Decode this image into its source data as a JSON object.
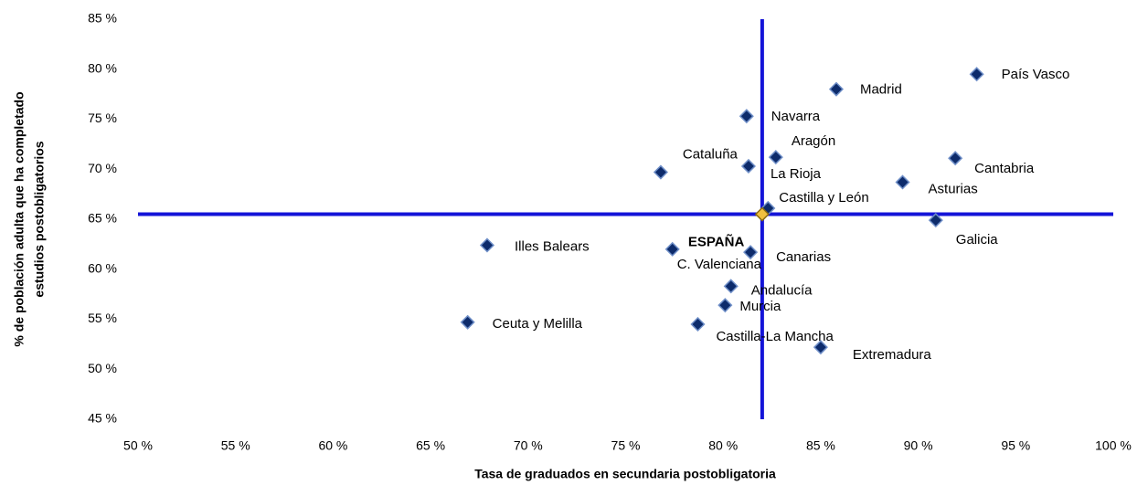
{
  "chart_data": {
    "type": "scatter",
    "xlabel": "Tasa de graduados en secundaria postobligatoria",
    "ylabel": [
      "% de población adulta que ha completado",
      "estudios postobligatorios"
    ],
    "xlim": [
      50,
      100
    ],
    "ylim": [
      45,
      85
    ],
    "xticks": [
      {
        "value": 50,
        "label": "50 %"
      },
      {
        "value": 55,
        "label": "55 %"
      },
      {
        "value": 60,
        "label": "60 %"
      },
      {
        "value": 65,
        "label": "65 %"
      },
      {
        "value": 70,
        "label": "70 %"
      },
      {
        "value": 75,
        "label": "75 %"
      },
      {
        "value": 80,
        "label": "80 %"
      },
      {
        "value": 85,
        "label": "85 %"
      },
      {
        "value": 90,
        "label": "90 %"
      },
      {
        "value": 95,
        "label": "95 %"
      },
      {
        "value": 100,
        "label": "100 %"
      }
    ],
    "yticks": [
      {
        "value": 45,
        "label": "45 %"
      },
      {
        "value": 50,
        "label": "50 %"
      },
      {
        "value": 55,
        "label": "55 %"
      },
      {
        "value": 60,
        "label": "60 %"
      },
      {
        "value": 65,
        "label": "65 %"
      },
      {
        "value": 70,
        "label": "70 %"
      },
      {
        "value": 75,
        "label": "75 %"
      },
      {
        "value": 80,
        "label": "80 %"
      },
      {
        "value": 85,
        "label": "85 %"
      }
    ],
    "reference_color": "#1414d8",
    "series": [
      {
        "color": "#0d2b6b",
        "labels": [
          "País Vasco",
          "Madrid",
          "Navarra",
          "Aragón",
          "Cataluña",
          "La Rioja",
          "Cantabria",
          "Asturias",
          "Castilla y León",
          "Galicia",
          "Illes Balears",
          "C. Valenciana",
          "Canarias",
          "Andalucía",
          "Murcia",
          "Ceuta y Melilla",
          "Castilla-La Mancha",
          "Extremadura"
        ],
        "x": [
          93.0,
          85.8,
          81.2,
          82.7,
          76.8,
          81.3,
          91.9,
          89.2,
          82.3,
          90.9,
          67.9,
          77.4,
          81.4,
          80.4,
          80.1,
          66.9,
          78.7,
          85.0
        ],
        "values": [
          79.5,
          78.0,
          75.3,
          71.2,
          69.7,
          70.3,
          71.1,
          68.7,
          66.1,
          64.9,
          62.4,
          62.0,
          61.7,
          58.3,
          56.4,
          54.7,
          54.5,
          52.2
        ]
      },
      {
        "color": "#f0c040",
        "labels": [
          "ESPAÑA"
        ],
        "x": [
          82.0
        ],
        "values": [
          65.5
        ]
      }
    ]
  }
}
